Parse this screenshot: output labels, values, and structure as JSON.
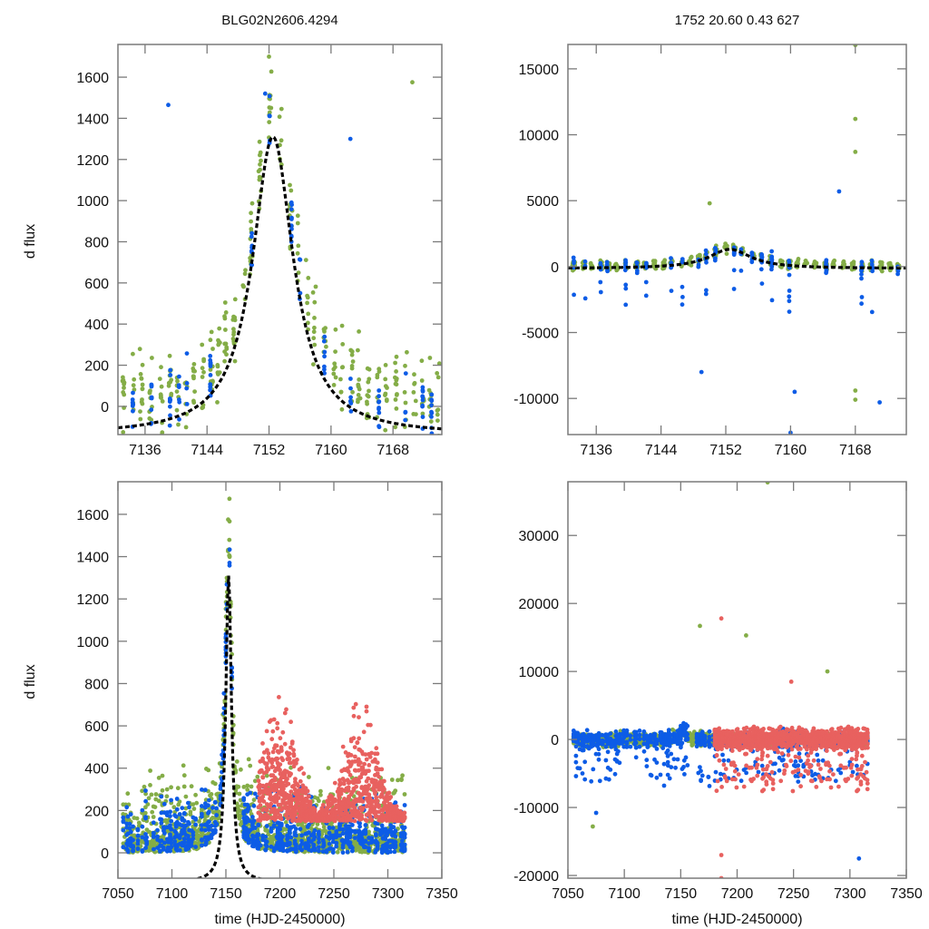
{
  "chart_data": [
    {
      "id": "top-left",
      "type": "scatter",
      "title": "BLG02N2606.4294",
      "xlabel": "",
      "ylabel": "d flux",
      "xlim": [
        7132.5,
        7174.3
      ],
      "ylim": [
        -137,
        1759
      ],
      "xticks": [
        7136,
        7144,
        7152,
        7160,
        7168
      ],
      "xtick_labels": [
        "7136",
        "7144",
        "7152",
        "7160",
        "7168"
      ],
      "yticks": [
        0,
        200,
        400,
        600,
        800,
        1000,
        1200,
        1400,
        1600
      ],
      "ytick_labels": [
        "0",
        "200",
        "400",
        "600",
        "800",
        "1000",
        "1200",
        "1400",
        "1600"
      ],
      "grid": false,
      "model": {
        "type": "peak",
        "t0": 7152.5,
        "peak": 1310,
        "base": -140,
        "width": 3.2
      },
      "series": [
        {
          "name": "green",
          "color": "#84ad47",
          "x_range": [
            7133,
            7174
          ],
          "concentration": "peak near 7152, values up to ~1700"
        },
        {
          "name": "blue",
          "color": "#0d5ce6",
          "x_range": [
            7134,
            7171
          ],
          "concentration": "clumped nightly columns, values -130 to 1520"
        }
      ],
      "notable_points": [
        {
          "series": "blue",
          "x": 7139,
          "y": 1465
        },
        {
          "series": "blue",
          "x": 7151.5,
          "y": 1520
        },
        {
          "series": "green",
          "x": 7152,
          "y": 1700
        },
        {
          "series": "green",
          "x": 7170.5,
          "y": 1575
        },
        {
          "series": "blue",
          "x": 7162.5,
          "y": 1300
        }
      ]
    },
    {
      "id": "top-right",
      "type": "scatter",
      "title": "1752  20.60  0.43  627",
      "xlabel": "",
      "ylabel": "",
      "xlim": [
        7132.5,
        7174.3
      ],
      "ylim": [
        -12740,
        16850
      ],
      "xticks": [
        7136,
        7144,
        7152,
        7160,
        7168
      ],
      "xtick_labels": [
        "7136",
        "7144",
        "7152",
        "7160",
        "7168"
      ],
      "yticks": [
        -10000,
        -5000,
        0,
        5000,
        10000,
        15000
      ],
      "ytick_labels": [
        "-10000",
        "-5000",
        "0",
        "5000",
        "10000",
        "15000"
      ],
      "grid": false,
      "model": {
        "type": "peak",
        "t0": 7152.5,
        "peak": 1310,
        "base": -140,
        "width": 3.2
      },
      "series": [
        {
          "name": "green",
          "color": "#84ad47",
          "x_range": [
            7133,
            7174
          ]
        },
        {
          "name": "blue",
          "color": "#0d5ce6",
          "x_range": [
            7134,
            7171
          ]
        }
      ],
      "notable_points": [
        {
          "series": "green",
          "x": 7168,
          "y": 16800
        },
        {
          "series": "green",
          "x": 7168,
          "y": 11200
        },
        {
          "series": "green",
          "x": 7168,
          "y": 8700
        },
        {
          "series": "blue",
          "x": 7166,
          "y": 5700
        },
        {
          "series": "green",
          "x": 7150,
          "y": 4800
        },
        {
          "series": "blue",
          "x": 7149,
          "y": -8000
        },
        {
          "series": "blue",
          "x": 7160.5,
          "y": -9500
        },
        {
          "series": "blue",
          "x": 7160,
          "y": -12600
        },
        {
          "series": "green",
          "x": 7168,
          "y": -9400
        },
        {
          "series": "green",
          "x": 7168,
          "y": -10100
        },
        {
          "series": "blue",
          "x": 7171,
          "y": -10300
        }
      ]
    },
    {
      "id": "bottom-left",
      "type": "scatter",
      "title": "",
      "xlabel": "time (HJD-2450000)",
      "ylabel": "d flux",
      "xlim": [
        7050,
        7350
      ],
      "ylim": [
        -120,
        1754
      ],
      "xticks": [
        7050,
        7100,
        7150,
        7200,
        7250,
        7300,
        7350
      ],
      "xtick_labels": [
        "7050",
        "7100",
        "7150",
        "7200",
        "7250",
        "7300",
        "7350"
      ],
      "yticks": [
        0,
        200,
        400,
        600,
        800,
        1000,
        1200,
        1400,
        1600
      ],
      "ytick_labels": [
        "0",
        "200",
        "400",
        "600",
        "800",
        "1000",
        "1200",
        "1400",
        "1600"
      ],
      "grid": false,
      "model": {
        "type": "peak",
        "t0": 7152.5,
        "peak": 1310,
        "base": -140,
        "width": 3.2
      },
      "series": [
        {
          "name": "green",
          "color": "#84ad47",
          "x_range": [
            7055,
            7310
          ]
        },
        {
          "name": "blue",
          "color": "#0d5ce6",
          "x_range": [
            7065,
            7310
          ]
        },
        {
          "name": "red",
          "color": "#e8615f",
          "x_range": [
            7180,
            7315
          ]
        }
      ]
    },
    {
      "id": "bottom-right",
      "type": "scatter",
      "title": "",
      "xlabel": "time (HJD-2450000)",
      "ylabel": "",
      "xlim": [
        7050,
        7350
      ],
      "ylim": [
        -20400,
        37900
      ],
      "xticks": [
        7050,
        7100,
        7150,
        7200,
        7250,
        7300,
        7350
      ],
      "xtick_labels": [
        "7050",
        "7100",
        "7150",
        "7200",
        "7250",
        "7300",
        "7350"
      ],
      "yticks": [
        -20000,
        -10000,
        0,
        10000,
        20000,
        30000
      ],
      "ytick_labels": [
        "-20000",
        "-10000",
        "0",
        "10000",
        "20000",
        "30000"
      ],
      "grid": false,
      "series": [
        {
          "name": "green",
          "color": "#84ad47",
          "x_range": [
            7055,
            7310
          ]
        },
        {
          "name": "blue",
          "color": "#0d5ce6",
          "x_range": [
            7065,
            7310
          ]
        },
        {
          "name": "red",
          "color": "#e8615f",
          "x_range": [
            7180,
            7315
          ]
        }
      ],
      "notable_points": [
        {
          "series": "green",
          "x": 7227,
          "y": 37800
        },
        {
          "series": "red",
          "x": 7186,
          "y": 17800
        },
        {
          "series": "green",
          "x": 7167,
          "y": 16700
        },
        {
          "series": "green",
          "x": 7208,
          "y": 15300
        },
        {
          "series": "green",
          "x": 7280,
          "y": 10000
        },
        {
          "series": "red",
          "x": 7248,
          "y": 8500
        },
        {
          "series": "blue",
          "x": 7308,
          "y": -17500
        },
        {
          "series": "red",
          "x": 7186,
          "y": -20400
        },
        {
          "series": "red",
          "x": 7186,
          "y": -17000
        },
        {
          "series": "blue",
          "x": 7075,
          "y": -10800
        },
        {
          "series": "green",
          "x": 7072,
          "y": -12800
        }
      ]
    }
  ]
}
